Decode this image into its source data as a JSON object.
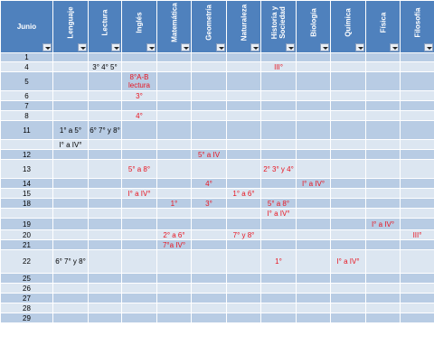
{
  "columns": [
    "Junio",
    "Lenguaje",
    "Lectura",
    "Inglés",
    "Matemática",
    "Geometría",
    "Naturaleza",
    "Historia y\nSociedad",
    "Biología",
    "Química",
    "Física",
    "Filosofía"
  ],
  "rows": [
    {
      "day": "1",
      "cells": [
        "",
        "",
        "",
        "",
        "",
        "",
        "",
        "",
        "",
        "",
        ""
      ]
    },
    {
      "day": "4",
      "cells": [
        "",
        "3° 4° 5°",
        "",
        "",
        "",
        "",
        "III°",
        "",
        "",
        "",
        ""
      ]
    },
    {
      "day": "5",
      "cells": [
        "",
        "",
        "8°A-B lectura",
        "",
        "",
        "",
        "",
        "",
        "",
        "",
        ""
      ]
    },
    {
      "day": "6",
      "cells": [
        "",
        "",
        "3°",
        "",
        "",
        "",
        "",
        "",
        "",
        "",
        ""
      ]
    },
    {
      "day": "7",
      "cells": [
        "",
        "",
        "",
        "",
        "",
        "",
        "",
        "",
        "",
        "",
        ""
      ]
    },
    {
      "day": "8",
      "cells": [
        "",
        "",
        "4°",
        "",
        "",
        "",
        "",
        "",
        "",
        "",
        ""
      ]
    },
    {
      "day": "11",
      "cells": [
        "1° a 5°",
        "6° 7° y 8°",
        "",
        "",
        "",
        "",
        "",
        "",
        "",
        "",
        ""
      ]
    },
    {
      "day": "",
      "cells": [
        "I° a IV°",
        "",
        "",
        "",
        "",
        "",
        "",
        "",
        "",
        "",
        ""
      ]
    },
    {
      "day": "12",
      "cells": [
        "",
        "",
        "",
        "",
        "5° a IV",
        "",
        "",
        "",
        "",
        "",
        ""
      ]
    },
    {
      "day": "13",
      "cells": [
        "",
        "",
        "5° a 8°",
        "",
        "",
        "",
        "2° 3° y 4°",
        "",
        "",
        "",
        ""
      ]
    },
    {
      "day": "14",
      "cells": [
        "",
        "",
        "",
        "",
        "4°",
        "",
        "",
        "I° a IV°",
        "",
        "",
        ""
      ]
    },
    {
      "day": "15",
      "cells": [
        "",
        "",
        "I° a IV°",
        "",
        "",
        "1° a 6°",
        "",
        "",
        "",
        "",
        ""
      ]
    },
    {
      "day": "18",
      "cells": [
        "",
        "",
        "",
        "1°",
        "3°",
        "",
        "5° a 8°",
        "",
        "",
        "",
        ""
      ]
    },
    {
      "day": "",
      "cells": [
        "",
        "",
        "",
        "",
        "",
        "",
        "I° a IV°",
        "",
        "",
        "",
        ""
      ]
    },
    {
      "day": "19",
      "cells": [
        "",
        "",
        "",
        "",
        "",
        "",
        "",
        "",
        "",
        "I° a IV°",
        ""
      ]
    },
    {
      "day": "20",
      "cells": [
        "",
        "",
        "",
        "2° a  6°",
        "",
        "7° y 8°",
        "",
        "",
        "",
        "",
        "III°"
      ]
    },
    {
      "day": "21",
      "cells": [
        "",
        "",
        "",
        "7°a IV°",
        "",
        "",
        "",
        "",
        "",
        "",
        ""
      ]
    },
    {
      "day": "22",
      "cells": [
        "6° 7° y 8°",
        "",
        "",
        "",
        "",
        "",
        "1°",
        "",
        "I° a IV°",
        "",
        ""
      ]
    },
    {
      "day": "25",
      "cells": [
        "",
        "",
        "",
        "",
        "",
        "",
        "",
        "",
        "",
        "",
        ""
      ]
    },
    {
      "day": "26",
      "cells": [
        "",
        "",
        "",
        "",
        "",
        "",
        "",
        "",
        "",
        "",
        ""
      ]
    },
    {
      "day": "27",
      "cells": [
        "",
        "",
        "",
        "",
        "",
        "",
        "",
        "",
        "",
        "",
        ""
      ]
    },
    {
      "day": "28",
      "cells": [
        "",
        "",
        "",
        "",
        "",
        "",
        "",
        "",
        "",
        "",
        ""
      ]
    },
    {
      "day": "29",
      "cells": [
        "",
        "",
        "",
        "",
        "",
        "",
        "",
        "",
        "",
        "",
        ""
      ]
    }
  ],
  "colors": {
    "header_bg": "#4f81bd",
    "header_text": "#ffffff",
    "row_light": "#dce6f1",
    "row_dark": "#b8cce4",
    "entry_red": "#e8141f",
    "entry_black": "#000000",
    "grid_line": "#ffffff"
  },
  "icons": {
    "filter_button": "dropdown-arrow-icon"
  }
}
